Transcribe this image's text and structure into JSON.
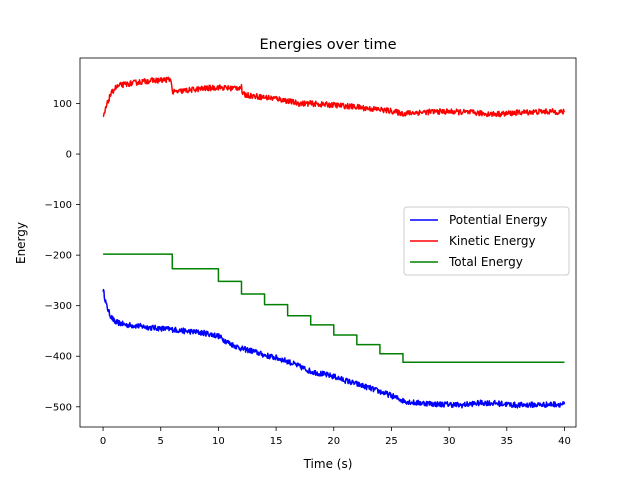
{
  "chart_data": {
    "type": "line",
    "title": "Energies over time",
    "xlabel": "Time (s)",
    "ylabel": "Energy",
    "xlim": [
      -2,
      41
    ],
    "ylim": [
      -540,
      190
    ],
    "xticks": [
      0,
      5,
      10,
      15,
      20,
      25,
      30,
      35,
      40
    ],
    "yticks": [
      -500,
      -400,
      -300,
      -200,
      -100,
      0,
      100
    ],
    "ytick_labels": [
      "−500",
      "−400",
      "−300",
      "−200",
      "−100",
      "0",
      "100"
    ],
    "grid": false,
    "legend_position": "center-right",
    "series": [
      {
        "name": "Potential Energy",
        "color": "#0000ff",
        "noisy": true,
        "x": [
          0,
          0.3,
          0.6,
          1,
          1.5,
          2,
          3,
          4,
          5,
          6,
          7,
          8,
          9,
          10,
          10.5,
          11,
          12,
          13,
          14,
          15,
          16,
          17,
          18,
          19,
          20,
          21,
          22,
          23,
          24,
          25,
          26,
          27,
          28,
          29,
          30,
          31,
          32,
          33,
          34,
          35,
          36,
          37,
          38,
          39,
          40
        ],
        "values": [
          -268,
          -300,
          -318,
          -332,
          -335,
          -338,
          -340,
          -343,
          -345,
          -347,
          -350,
          -352,
          -355,
          -360,
          -368,
          -375,
          -385,
          -390,
          -398,
          -403,
          -410,
          -420,
          -430,
          -435,
          -440,
          -448,
          -455,
          -462,
          -470,
          -478,
          -488,
          -492,
          -493,
          -495,
          -495,
          -497,
          -494,
          -492,
          -493,
          -495,
          -497,
          -496,
          -496,
          -495,
          -495
        ]
      },
      {
        "name": "Kinetic Energy",
        "color": "#ff0000",
        "noisy": true,
        "x": [
          0,
          0.3,
          0.6,
          1,
          1.5,
          2,
          3,
          4,
          5,
          5.9,
          6,
          7,
          8,
          9,
          10,
          11,
          12,
          12.1,
          13,
          14,
          15,
          16,
          17,
          18,
          19,
          20,
          21,
          22,
          23,
          24,
          25,
          26,
          27,
          28,
          29,
          30,
          31,
          32,
          33,
          34,
          35,
          36,
          37,
          38,
          39,
          40
        ],
        "values": [
          70,
          95,
          115,
          130,
          136,
          138,
          142,
          145,
          146,
          148,
          122,
          125,
          128,
          130,
          132,
          130,
          132,
          118,
          115,
          112,
          110,
          105,
          100,
          100,
          98,
          97,
          95,
          93,
          90,
          88,
          85,
          80,
          82,
          83,
          84,
          84,
          83,
          82,
          80,
          79,
          80,
          82,
          83,
          84,
          84,
          83
        ]
      },
      {
        "name": "Total Energy",
        "color": "#008000",
        "noisy": false,
        "step": true,
        "x": [
          0,
          6,
          10,
          12,
          14,
          16,
          18,
          20,
          22,
          24,
          26,
          40
        ],
        "values": [
          -198,
          -227,
          -252,
          -277,
          -298,
          -320,
          -338,
          -358,
          -377,
          -395,
          -412,
          -412
        ]
      }
    ]
  }
}
